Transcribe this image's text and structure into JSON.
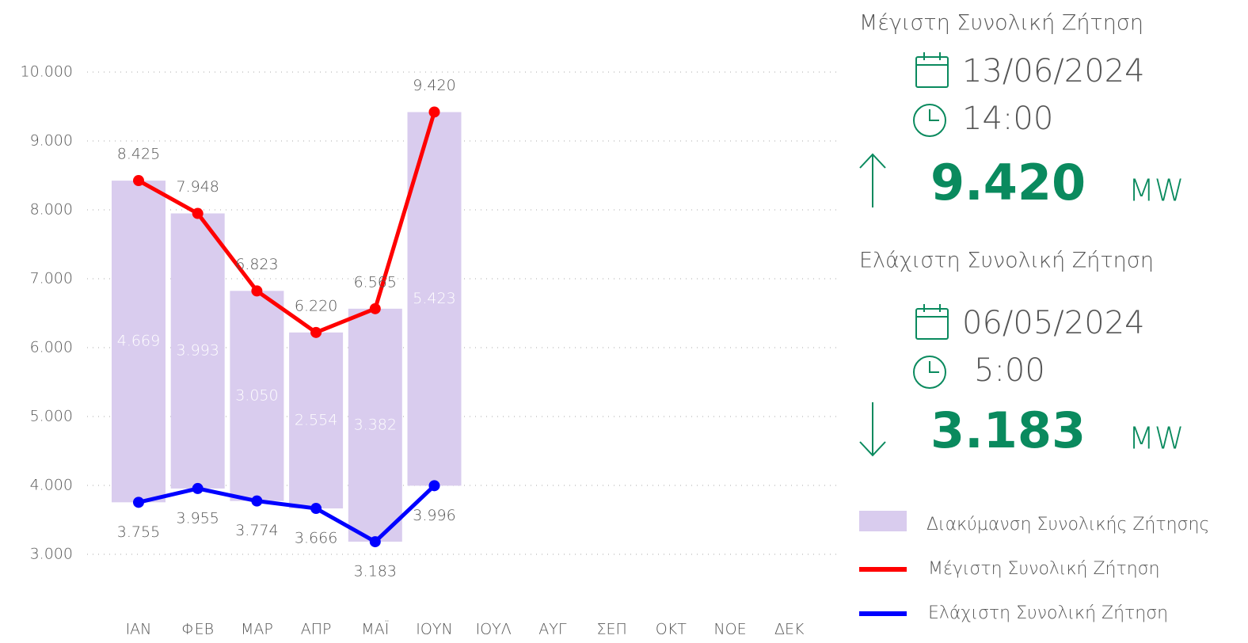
{
  "chart_data": {
    "type": "bar",
    "categories": [
      "ΙΑΝ",
      "ΦΕΒ",
      "ΜΑΡ",
      "ΑΠΡ",
      "ΜΑΪ",
      "ΙΟΥΝ",
      "ΙΟΥΛ",
      "ΑΥΓ",
      "ΣΕΠ",
      "ΟΚΤ",
      "ΝΟΕ",
      "ΔΕΚ"
    ],
    "series": [
      {
        "name": "Διακύμανση Συνολικής Ζήτησης",
        "type": "bar",
        "color": "#d9ccee",
        "values": [
          4669,
          3993,
          3050,
          2554,
          3382,
          5423,
          null,
          null,
          null,
          null,
          null,
          null
        ],
        "value_labels": [
          "4.669",
          "3.993",
          "3.050",
          "2.554",
          "3.382",
          "5.423",
          null,
          null,
          null,
          null,
          null,
          null
        ]
      },
      {
        "name": "Μέγιστη Συνολική Ζήτηση",
        "type": "line",
        "color": "#ff0000",
        "values": [
          8425,
          7948,
          6823,
          6220,
          6565,
          9420,
          null,
          null,
          null,
          null,
          null,
          null
        ],
        "value_labels": [
          "8.425",
          "7.948",
          "6.823",
          "6.220",
          "6.565",
          "9.420",
          null,
          null,
          null,
          null,
          null,
          null
        ]
      },
      {
        "name": "Ελάχιστη Συνολική Ζήτηση",
        "type": "line",
        "color": "#0000ff",
        "values": [
          3755,
          3955,
          3774,
          3666,
          3183,
          3996,
          null,
          null,
          null,
          null,
          null,
          null
        ],
        "value_labels": [
          "3.755",
          "3.955",
          "3.774",
          "3.666",
          "3.183",
          "3.996",
          null,
          null,
          null,
          null,
          null,
          null
        ]
      }
    ],
    "ylim": [
      3000,
      10000
    ],
    "yticks": [
      {
        "value": 3000,
        "label": "3.000"
      },
      {
        "value": 4000,
        "label": "4.000"
      },
      {
        "value": 5000,
        "label": "5.000"
      },
      {
        "value": 6000,
        "label": "6.000"
      },
      {
        "value": 7000,
        "label": "7.000"
      },
      {
        "value": 8000,
        "label": "8.000"
      },
      {
        "value": 9000,
        "label": "9.000"
      },
      {
        "value": 10000,
        "label": "10.000"
      }
    ],
    "grid": true,
    "legend": "right"
  },
  "panel": {
    "max": {
      "title": "Μέγιστη Συνολική Ζήτηση",
      "date": "13/06/2024",
      "time": "14:00",
      "value": "9.420",
      "unit": "MW"
    },
    "min": {
      "title": "Ελάχιστη Συνολική Ζήτηση",
      "date": "06/05/2024",
      "time": "5:00",
      "value": "3.183",
      "unit": "MW"
    }
  }
}
